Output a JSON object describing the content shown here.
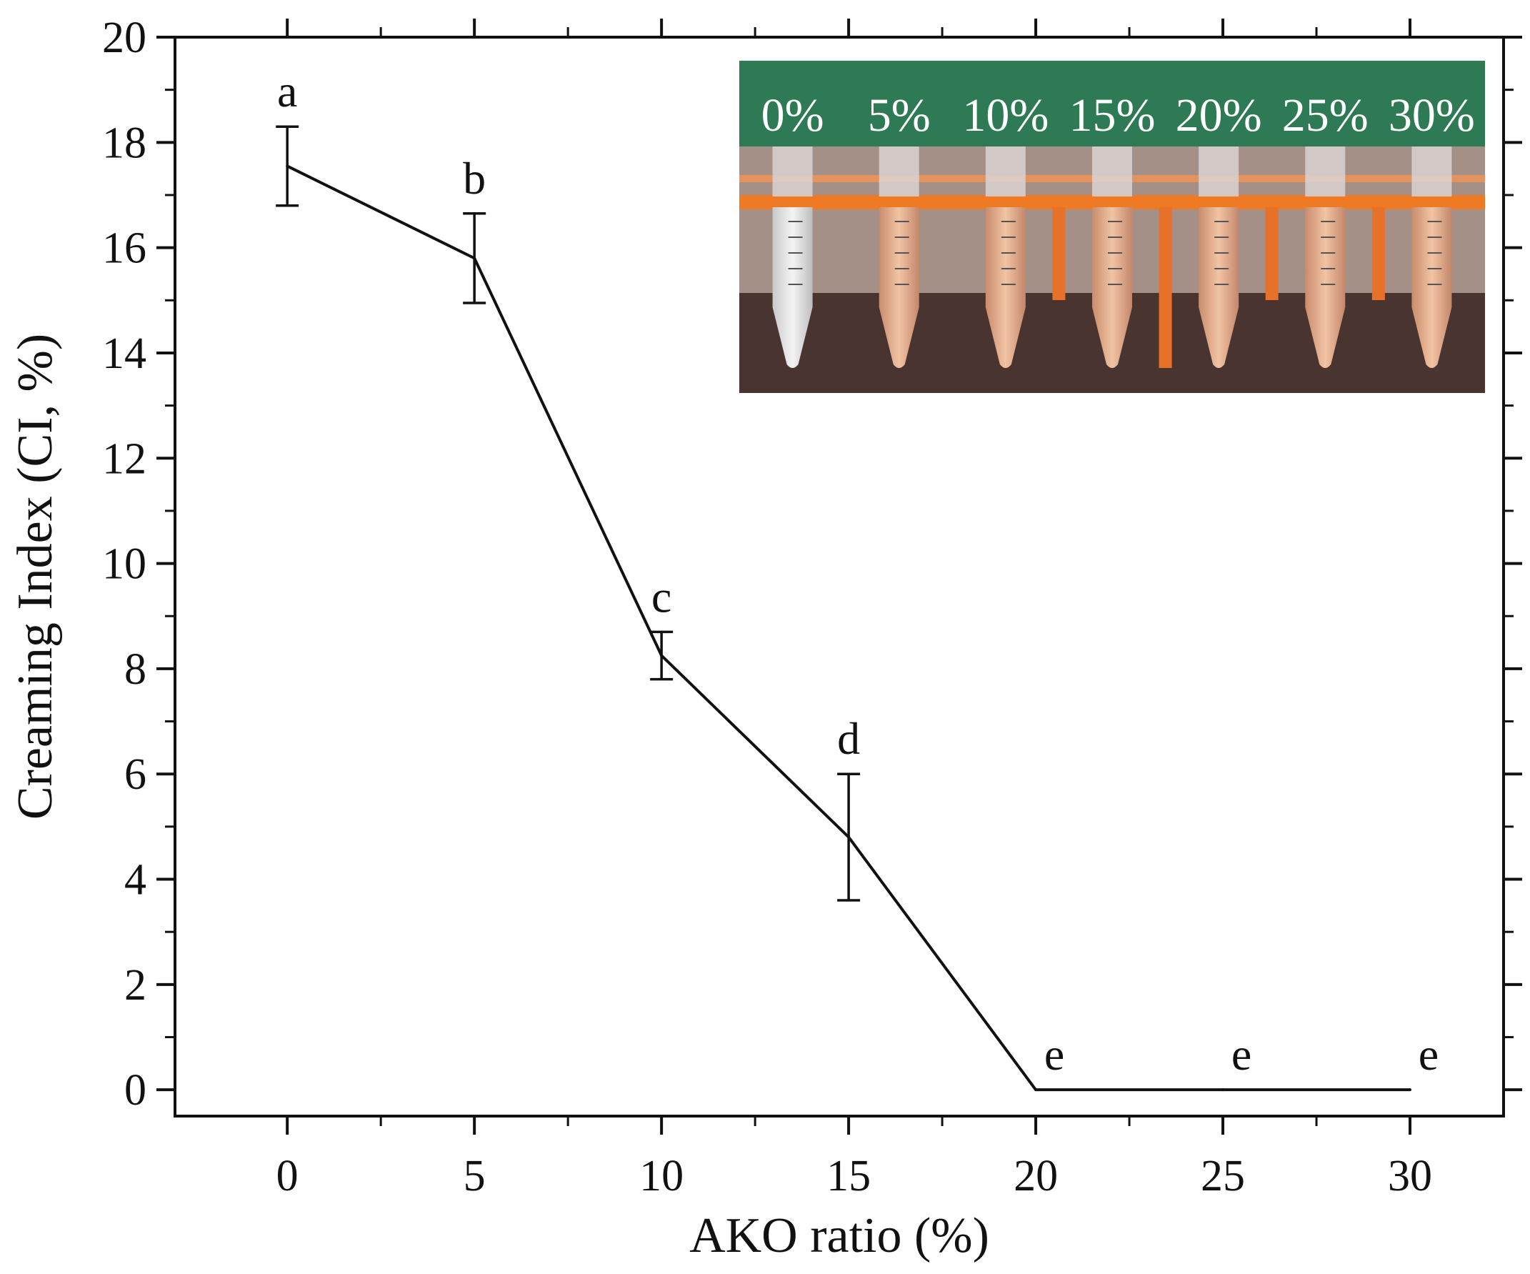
{
  "chart_data": {
    "type": "line",
    "title": "",
    "xlabel": "AKO ratio (%)",
    "ylabel": "Creaming Index (CI, %)",
    "xlim": [
      -3,
      32.5
    ],
    "ylim": [
      -0.5,
      20
    ],
    "xticks": [
      0,
      5,
      10,
      15,
      20,
      25,
      30
    ],
    "yticks": [
      0,
      2,
      4,
      6,
      8,
      10,
      12,
      14,
      16,
      18,
      20
    ],
    "grid": false,
    "legend": "none",
    "colors": {
      "line": "#111111",
      "inset_band": "#2e7a54"
    },
    "series": [
      {
        "x": [
          0,
          5,
          10,
          15,
          20,
          25,
          30
        ],
        "y": [
          17.55,
          15.8,
          8.25,
          4.8,
          0,
          0,
          0
        ],
        "error": [
          0.75,
          0.85,
          0.45,
          1.2,
          0,
          0,
          0
        ],
        "significance": [
          "a",
          "b",
          "c",
          "d",
          "e",
          "e",
          "e"
        ]
      }
    ],
    "inset": {
      "type": "photo",
      "subject": "emulsion-tubes",
      "labels": [
        "0%",
        "5%",
        "10%",
        "15%",
        "20%",
        "25%",
        "30%"
      ]
    }
  }
}
